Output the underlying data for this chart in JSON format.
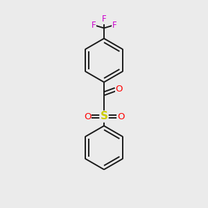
{
  "background_color": "#ebebeb",
  "bond_color": "#1a1a1a",
  "atom_colors": {
    "F": "#cc00cc",
    "O": "#ff0000",
    "S": "#cccc00",
    "C": "#1a1a1a"
  },
  "figsize": [
    3.0,
    3.0
  ],
  "dpi": 100,
  "xlim": [
    0,
    10
  ],
  "ylim": [
    0,
    10
  ]
}
